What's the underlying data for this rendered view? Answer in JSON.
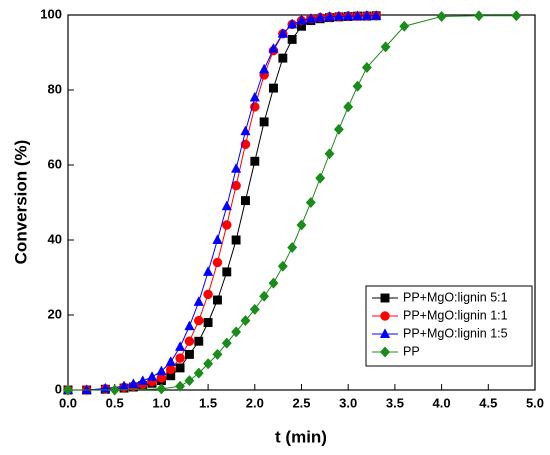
{
  "chart_data": {
    "type": "line",
    "x_label": "t (min)",
    "y_label": "Conversion (%)",
    "xlim": [
      0,
      5
    ],
    "ylim": [
      0,
      100
    ],
    "xticks": [
      {
        "value": 0,
        "label": "0.0"
      },
      0.5,
      {
        "value": 1,
        "label": "1.0"
      },
      1.5,
      {
        "value": 2,
        "label": "2.0"
      },
      2.5,
      {
        "value": 3,
        "label": "3.0"
      },
      3.5,
      {
        "value": 4,
        "label": "4.0"
      },
      4.5,
      {
        "value": 5,
        "label": "5.0"
      }
    ],
    "yticks": [
      0,
      20,
      40,
      60,
      80,
      100
    ],
    "legend_position": "lower right",
    "series": [
      {
        "name": "PP+MgO:lignin 5:1",
        "color": "#000000",
        "marker": "square",
        "x": [
          0,
          0.2,
          0.4,
          0.6,
          0.7,
          0.8,
          0.9,
          1.0,
          1.1,
          1.2,
          1.3,
          1.4,
          1.5,
          1.6,
          1.7,
          1.8,
          1.9,
          2.0,
          2.1,
          2.2,
          2.3,
          2.4,
          2.5,
          2.6,
          2.7,
          2.8,
          2.9,
          3.0,
          3.1,
          3.2,
          3.3
        ],
        "values": [
          0,
          0,
          0.2,
          0.5,
          0.8,
          1.2,
          1.8,
          2.5,
          3.8,
          5.9,
          9.5,
          13,
          18,
          24,
          31.5,
          40,
          50.5,
          61,
          71.5,
          80.5,
          88.5,
          93.5,
          97,
          98.5,
          99,
          99.3,
          99.5,
          99.6,
          99.7,
          99.7,
          99.8
        ]
      },
      {
        "name": "PP+MgO:lignin 1:1",
        "color": "#ff0000",
        "marker": "circle",
        "x": [
          0,
          0.2,
          0.4,
          0.6,
          0.7,
          0.8,
          0.9,
          1.0,
          1.1,
          1.2,
          1.3,
          1.4,
          1.5,
          1.6,
          1.7,
          1.8,
          1.9,
          2.0,
          2.1,
          2.2,
          2.3,
          2.4,
          2.5,
          2.6,
          2.7,
          2.8,
          2.9,
          3.0,
          3.1,
          3.2,
          3.3
        ],
        "values": [
          0,
          0,
          0.3,
          0.7,
          1,
          1.5,
          2.2,
          3.2,
          5.5,
          8.5,
          13,
          18.5,
          25.5,
          34,
          44,
          54.5,
          65.5,
          75.5,
          84,
          90.5,
          95,
          97.5,
          98.5,
          99,
          99.3,
          99.5,
          99.6,
          99.7,
          99.7,
          99.8,
          99.8
        ]
      },
      {
        "name": "PP+MgO:lignin 1:5",
        "color": "#0000ff",
        "marker": "triangle",
        "x": [
          0,
          0.2,
          0.4,
          0.6,
          0.7,
          0.8,
          0.9,
          1.0,
          1.1,
          1.2,
          1.3,
          1.4,
          1.5,
          1.6,
          1.7,
          1.8,
          1.9,
          2.0,
          2.1,
          2.2,
          2.3,
          2.4,
          2.5,
          2.6,
          2.7,
          2.8,
          2.9,
          3.0,
          3.1,
          3.2,
          3.3
        ],
        "values": [
          0,
          0,
          0.4,
          1,
          1.6,
          2.4,
          3.5,
          5,
          7.5,
          11.5,
          17,
          23.5,
          31.5,
          40,
          49,
          59,
          69,
          78,
          85.5,
          91,
          95,
          97.5,
          98.5,
          99,
          99.3,
          99.5,
          99.6,
          99.7,
          99.7,
          99.8,
          99.8
        ]
      },
      {
        "name": "PP",
        "color": "#1a8c1a",
        "marker": "diamond",
        "x": [
          0,
          0.5,
          1.0,
          1.2,
          1.3,
          1.4,
          1.5,
          1.6,
          1.7,
          1.8,
          1.9,
          2.0,
          2.1,
          2.2,
          2.3,
          2.4,
          2.5,
          2.6,
          2.7,
          2.8,
          2.9,
          3.0,
          3.1,
          3.2,
          3.4,
          3.6,
          4.0,
          4.4,
          4.8
        ],
        "values": [
          0,
          0,
          0.3,
          1,
          2.5,
          4.5,
          7,
          9.5,
          12.5,
          15.5,
          18.5,
          21.5,
          25,
          28.5,
          33,
          38,
          44,
          50,
          56.5,
          63,
          69.5,
          75.5,
          81,
          86,
          91.5,
          97,
          99.6,
          99.8,
          99.8
        ]
      }
    ]
  }
}
